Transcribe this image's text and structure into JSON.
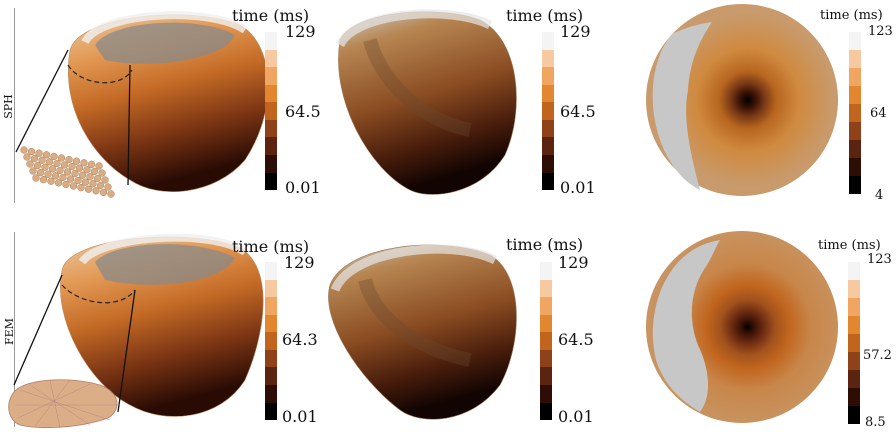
{
  "rows": [
    {
      "label": "SPH",
      "hearts": [
        {
          "title": "time (ms)",
          "ticks": [
            "129",
            "64.5",
            "0.01"
          ]
        },
        {
          "title": "time (ms)",
          "ticks": [
            "129",
            "64.5",
            "0.01"
          ]
        }
      ],
      "disc": {
        "title": "time (ms)",
        "ticks": [
          "123",
          "64",
          "4"
        ]
      }
    },
    {
      "label": "FEM",
      "hearts": [
        {
          "title": "time (ms)",
          "ticks": [
            "129",
            "64.3",
            "0.01"
          ]
        },
        {
          "title": "time (ms)",
          "ticks": [
            "129",
            "64.5",
            "0.01"
          ]
        }
      ],
      "disc": {
        "title": "time (ms)",
        "ticks": [
          "123",
          "57.2",
          "8.5"
        ]
      }
    }
  ],
  "colormap": [
    "#f4f4f4",
    "#f6c9a0",
    "#f0a660",
    "#e2862f",
    "#c1651e",
    "#8f4219",
    "#5a2410",
    "#2e0d05",
    "#000000"
  ],
  "colors": {
    "tissue": "#c89a6c",
    "grey_region": "#c7c7c7",
    "particle": "#d9ad84"
  }
}
